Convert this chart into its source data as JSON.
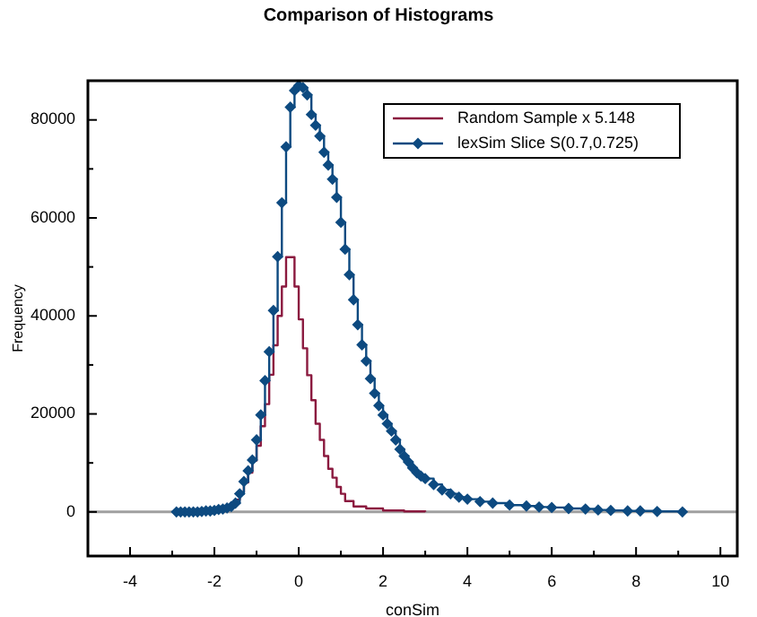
{
  "chart_data": {
    "type": "step",
    "title": "Comparison of Histograms",
    "xlabel": "conSim",
    "ylabel": "Frequency",
    "xlim": [
      -5,
      10.4
    ],
    "ylim": [
      -9000,
      88000
    ],
    "xticks": [
      -4,
      {
        "value": -3,
        "label": null
      },
      -2,
      {
        "value": -1,
        "label": null
      },
      0,
      {
        "value": 1,
        "label": null
      },
      2,
      {
        "value": 3,
        "label": null
      },
      4,
      {
        "value": 5,
        "label": null
      },
      6,
      {
        "value": 7,
        "label": null
      },
      8,
      {
        "value": 9,
        "label": null
      },
      10
    ],
    "yticks": [
      0,
      {
        "value": 10000,
        "label": null
      },
      20000,
      {
        "value": 30000,
        "label": null
      },
      40000,
      {
        "value": 50000,
        "label": null
      },
      60000,
      {
        "value": 70000,
        "label": null
      },
      80000
    ],
    "grid": false,
    "legend": "top right",
    "ref_lines": [
      {
        "axis": "y",
        "value": 0,
        "color": "#a0a0a0"
      }
    ],
    "series": [
      {
        "name": "Random Sample x 5.148",
        "color": "#8b1a3f",
        "marker": "none",
        "x": [
          -1.8,
          -1.6,
          -1.5,
          -1.4,
          -1.3,
          -1.2,
          -1.1,
          -1.0,
          -0.9,
          -0.8,
          -0.7,
          -0.6,
          -0.5,
          -0.4,
          -0.3,
          -0.2,
          -0.1,
          0.0,
          0.1,
          0.2,
          0.3,
          0.4,
          0.5,
          0.6,
          0.7,
          0.8,
          0.9,
          1.0,
          1.1,
          1.3,
          1.6,
          2.0,
          2.5,
          3.0
        ],
        "values": [
          700,
          1500,
          2500,
          4000,
          6000,
          8000,
          10500,
          13500,
          17500,
          22000,
          28000,
          34000,
          40000,
          46000,
          52000,
          52000,
          46000,
          39300,
          33400,
          27900,
          22800,
          18000,
          14700,
          11400,
          8800,
          7000,
          5100,
          3700,
          2200,
          1100,
          700,
          300,
          100,
          0
        ]
      },
      {
        "name": "lexSim Slice S(0.7,0.725)",
        "color": "#0d4a80",
        "marker": "diamond",
        "x": [
          -2.9,
          -2.8,
          -2.7,
          -2.6,
          -2.5,
          -2.4,
          -2.3,
          -2.2,
          -2.1,
          -2.0,
          -1.9,
          -1.8,
          -1.7,
          -1.6,
          -1.5,
          -1.4,
          -1.3,
          -1.2,
          -1.1,
          -1.0,
          -0.9,
          -0.8,
          -0.7,
          -0.6,
          -0.5,
          -0.4,
          -0.3,
          -0.2,
          -0.1,
          0.0,
          0.1,
          0.2,
          0.3,
          0.4,
          0.5,
          0.6,
          0.7,
          0.8,
          0.9,
          1.0,
          1.1,
          1.2,
          1.3,
          1.4,
          1.5,
          1.6,
          1.7,
          1.8,
          1.9,
          2.0,
          2.1,
          2.2,
          2.3,
          2.4,
          2.5,
          2.6,
          2.7,
          2.8,
          2.9,
          3.0,
          3.2,
          3.4,
          3.6,
          3.8,
          4.0,
          4.3,
          4.6,
          5.0,
          5.4,
          5.7,
          6.0,
          6.4,
          6.8,
          7.1,
          7.4,
          7.8,
          8.1,
          8.5,
          9.1
        ],
        "values": [
          0,
          0,
          0,
          0,
          0,
          0,
          100,
          200,
          200,
          300,
          500,
          600,
          800,
          1100,
          1800,
          3700,
          6200,
          8400,
          10600,
          14700,
          19800,
          26800,
          32700,
          41100,
          52100,
          63100,
          74500,
          82600,
          86000,
          87000,
          86600,
          85100,
          81100,
          78900,
          76700,
          73400,
          70800,
          67900,
          64200,
          59100,
          53600,
          48400,
          43300,
          38200,
          34100,
          30800,
          27200,
          24200,
          21700,
          19800,
          18000,
          16500,
          14700,
          12800,
          11400,
          10200,
          9000,
          8000,
          7300,
          6800,
          5600,
          4500,
          3700,
          3000,
          2600,
          2100,
          1800,
          1400,
          1200,
          1000,
          900,
          700,
          600,
          400,
          300,
          200,
          200,
          100,
          0
        ]
      }
    ]
  }
}
